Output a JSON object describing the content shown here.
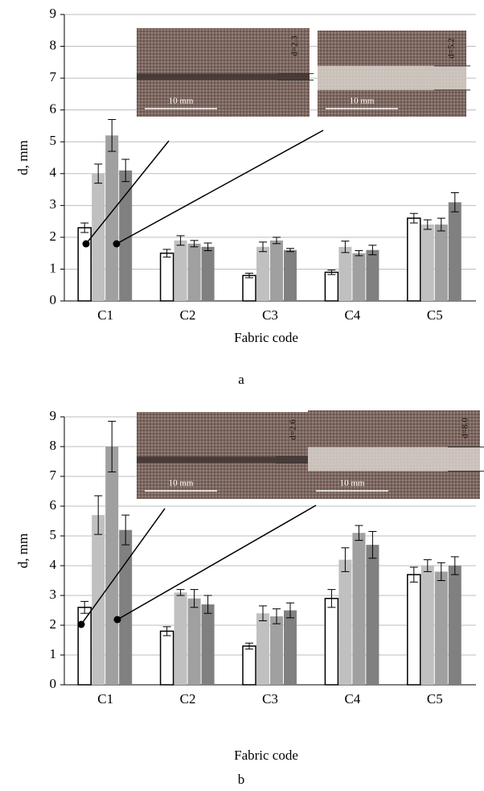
{
  "chart_data": [
    {
      "type": "bar",
      "caption": "a",
      "xlabel": "Fabric code",
      "ylabel": "d, mm",
      "categories": [
        "C1",
        "C2",
        "C3",
        "C4",
        "C5"
      ],
      "ylim": [
        0,
        9
      ],
      "yticks": [
        0,
        1,
        2,
        3,
        4,
        5,
        6,
        7,
        8,
        9
      ],
      "grid": true,
      "series": [
        {
          "color": "#ffffff",
          "values": [
            2.3,
            1.5,
            0.8,
            0.9,
            2.6
          ],
          "errors": [
            0.15,
            0.12,
            0.07,
            0.07,
            0.15
          ]
        },
        {
          "color": "#c0c0c0",
          "values": [
            4.0,
            1.9,
            1.7,
            1.7,
            2.4
          ],
          "errors": [
            0.3,
            0.15,
            0.15,
            0.18,
            0.15
          ]
        },
        {
          "color": "#a0a0a0",
          "values": [
            5.2,
            1.8,
            1.9,
            1.5,
            2.4
          ],
          "errors": [
            0.5,
            0.1,
            0.1,
            0.08,
            0.2
          ]
        },
        {
          "color": "#808080",
          "values": [
            4.1,
            1.7,
            1.6,
            1.6,
            3.1
          ],
          "errors": [
            0.35,
            0.12,
            0.05,
            0.15,
            0.3
          ]
        }
      ],
      "annotations": [
        "10 mm",
        "d=2.3",
        "10 mm",
        "d=5.2"
      ]
    },
    {
      "type": "bar",
      "caption": "b",
      "xlabel": "Fabric code",
      "ylabel": "d, mm",
      "categories": [
        "C1",
        "C2",
        "C3",
        "C4",
        "C5"
      ],
      "ylim": [
        0,
        9
      ],
      "yticks": [
        0,
        1,
        2,
        3,
        4,
        5,
        6,
        7,
        8,
        9
      ],
      "grid": true,
      "series": [
        {
          "color": "#ffffff",
          "values": [
            2.6,
            1.8,
            1.3,
            2.9,
            3.7
          ],
          "errors": [
            0.2,
            0.15,
            0.1,
            0.3,
            0.25
          ]
        },
        {
          "color": "#c0c0c0",
          "values": [
            5.7,
            3.1,
            2.4,
            4.2,
            4.0
          ],
          "errors": [
            0.65,
            0.1,
            0.25,
            0.4,
            0.2
          ]
        },
        {
          "color": "#a0a0a0",
          "values": [
            8.0,
            2.9,
            2.3,
            5.1,
            3.8
          ],
          "errors": [
            0.85,
            0.3,
            0.25,
            0.25,
            0.3
          ]
        },
        {
          "color": "#808080",
          "values": [
            5.2,
            2.7,
            2.5,
            4.7,
            4.0
          ],
          "errors": [
            0.5,
            0.3,
            0.25,
            0.45,
            0.3
          ]
        }
      ],
      "annotations": [
        "10 mm",
        "d=2.6",
        "10 mm",
        "d=8.0"
      ]
    }
  ]
}
